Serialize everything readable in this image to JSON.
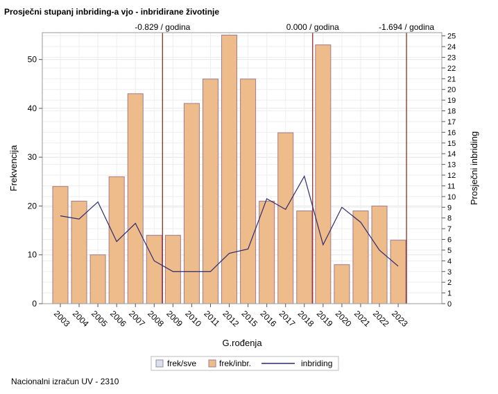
{
  "title": "Prosječni stupanj inbriding-a vjo - inbridirane životinje",
  "footer": "Nacionalni izračun UV - 2310",
  "chart_data": {
    "type": "bar",
    "categories": [
      "2003",
      "2004",
      "2005",
      "2006",
      "2007",
      "2008",
      "2009",
      "2010",
      "2011",
      "2012",
      "2015",
      "2016",
      "2017",
      "2018",
      "2019",
      "2020",
      "2021",
      "2022",
      "2023"
    ],
    "series": [
      {
        "name": "frek/inbr.",
        "type": "bar",
        "values": [
          24,
          21,
          10,
          26,
          43,
          14,
          14,
          41,
          46,
          55,
          46,
          21,
          35,
          19,
          53,
          8,
          19,
          20,
          13
        ]
      },
      {
        "name": "inbriding",
        "type": "line",
        "axis": "right",
        "values": [
          8.2,
          7.9,
          9.5,
          5.8,
          7.5,
          4.0,
          3.0,
          3.0,
          3.0,
          4.7,
          5.1,
          9.8,
          8.8,
          11.9,
          5.5,
          9.0,
          7.6,
          5.0,
          3.5
        ]
      }
    ],
    "legend": [
      {
        "name": "frek/sve",
        "type": "swatch"
      },
      {
        "name": "frek/inbr.",
        "type": "swatch"
      },
      {
        "name": "inbriding",
        "type": "line"
      }
    ],
    "xlabel": "G.rođenja",
    "ylabel": "Frekvencija",
    "y2label": "Prosječni inbriding",
    "ylim": [
      0,
      55.5
    ],
    "y2lim": [
      0,
      25.3
    ],
    "yticks": [
      0,
      10,
      20,
      30,
      40,
      50
    ],
    "y2ticks": [
      0,
      1,
      2,
      3,
      4,
      5,
      6,
      7,
      8,
      9,
      10,
      11,
      12,
      13,
      14,
      15,
      16,
      17,
      18,
      19,
      20,
      21,
      22,
      23,
      24,
      25
    ],
    "trend_lines": [
      {
        "x": "2008",
        "label": "-0.829 / godina"
      },
      {
        "x": "2018",
        "label": "0.000 / godina"
      },
      {
        "x": "2023",
        "label": "-1.694 / godina"
      }
    ],
    "grid": true,
    "legend_position": "bottom",
    "colors": {
      "bar_fill": "#edbc8a",
      "bar_stroke": "#a47a8a",
      "line": "#2b2a6e",
      "trend": "#8b1a1a",
      "frek_sve": "#dde0ea"
    }
  }
}
